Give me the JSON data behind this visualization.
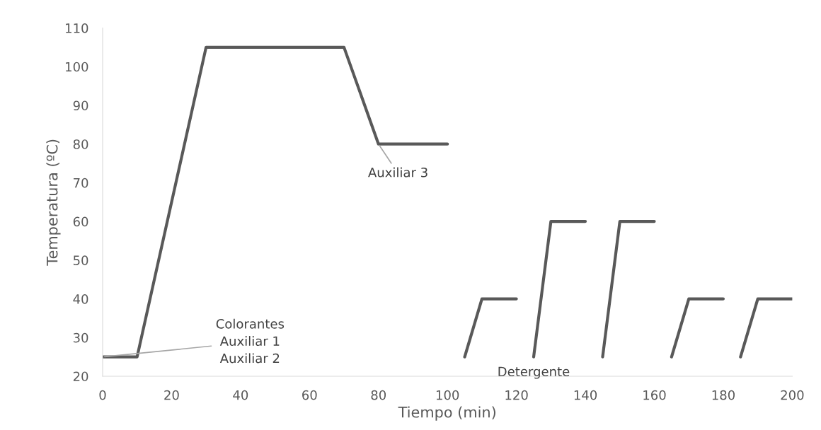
{
  "chart_data": {
    "type": "line",
    "xlabel": "Tiempo (min)",
    "ylabel": "Temperatura (ºC)",
    "x": [
      0,
      10,
      30,
      70,
      80,
      100,
      102,
      105,
      110,
      120,
      122,
      125,
      130,
      140,
      142,
      145,
      150,
      160,
      162,
      165,
      170,
      180,
      182,
      185,
      190,
      200
    ],
    "series": [
      {
        "color": "#595959",
        "values": [
          25,
          25,
          105,
          105,
          80,
          80,
          null,
          25,
          40,
          40,
          null,
          25,
          60,
          60,
          null,
          25,
          60,
          60,
          null,
          25,
          40,
          40,
          null,
          25,
          40,
          40
        ]
      }
    ],
    "xlim": [
      0,
      200
    ],
    "xticks": [
      0,
      20,
      40,
      60,
      80,
      100,
      120,
      140,
      160,
      180,
      200
    ],
    "ylim": [
      20,
      110
    ],
    "yticks": [
      20,
      30,
      40,
      50,
      60,
      70,
      80,
      90,
      100,
      110
    ],
    "grid": false,
    "line_style": "solid",
    "marker": "none",
    "annotations": [
      {
        "text": "Colorantes\nAuxiliar 1\nAuxiliar 2",
        "x": 0,
        "y": 25
      },
      {
        "text": "Auxiliar 3",
        "x": 80,
        "y": 80
      },
      {
        "text": "Detergente",
        "x": 125,
        "y": 25
      }
    ]
  }
}
